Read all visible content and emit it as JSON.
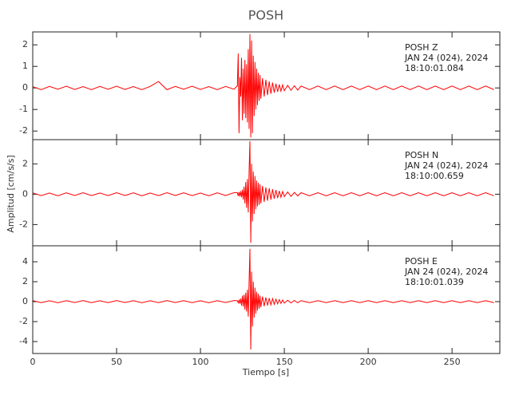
{
  "chart_data": [
    {
      "type": "line",
      "title": "POSH",
      "color": "#ff0000",
      "annotations": [
        "POSH   Z",
        "JAN 24 (024), 2024",
        "18:10:01.084"
      ],
      "xlim": [
        0,
        278.5
      ],
      "xticks": [
        0,
        50,
        100,
        150,
        200,
        250
      ],
      "ylim": [
        -2.4,
        2.6
      ],
      "yticks": [
        -2,
        -1,
        0,
        1,
        2
      ],
      "x": [
        0,
        5,
        10,
        15,
        20,
        25,
        30,
        35,
        40,
        45,
        50,
        55,
        60,
        65,
        70,
        75,
        80,
        85,
        90,
        95,
        100,
        105,
        110,
        115,
        120,
        122,
        122.5,
        123,
        123.5,
        124,
        124.5,
        125,
        125.5,
        126,
        126.5,
        127,
        127.5,
        128,
        128.5,
        129,
        129.5,
        130,
        130.5,
        131,
        131.5,
        132,
        132.5,
        133,
        133.5,
        134,
        134.5,
        135,
        135.5,
        136,
        137,
        138,
        139,
        140,
        141,
        142,
        143,
        144,
        145,
        146,
        147,
        148,
        149,
        150,
        152,
        154,
        156,
        158,
        160,
        165,
        170,
        175,
        180,
        185,
        190,
        195,
        200,
        205,
        210,
        215,
        220,
        225,
        230,
        235,
        240,
        245,
        250,
        255,
        260,
        265,
        270,
        275
      ],
      "values": [
        0.06,
        -0.08,
        0.07,
        -0.06,
        0.08,
        -0.07,
        0.06,
        -0.08,
        0.07,
        -0.06,
        0.08,
        -0.07,
        0.06,
        -0.08,
        0.07,
        0.3,
        -0.08,
        0.07,
        -0.06,
        0.08,
        -0.07,
        0.06,
        -0.08,
        0.07,
        -0.06,
        0.1,
        1.6,
        -2.1,
        0.5,
        -0.4,
        1.4,
        -1.5,
        0.9,
        -1.2,
        1.3,
        -1.4,
        1.1,
        -1.6,
        1.8,
        -1.9,
        2.5,
        -2.3,
        2.2,
        -2.1,
        1.5,
        -1.3,
        1.2,
        -1.0,
        0.9,
        -0.8,
        0.7,
        -0.6,
        0.6,
        -0.5,
        0.45,
        -0.4,
        0.38,
        -0.33,
        0.3,
        -0.27,
        0.25,
        -0.22,
        0.2,
        -0.18,
        0.16,
        -0.15,
        0.14,
        -0.13,
        0.12,
        -0.11,
        0.1,
        -0.1,
        0.09,
        -0.08,
        0.09,
        -0.08,
        0.09,
        -0.08,
        0.09,
        -0.08,
        0.09,
        -0.08,
        0.09,
        -0.08,
        0.09,
        -0.08,
        0.09,
        -0.08,
        0.09,
        -0.08,
        0.09,
        -0.08,
        0.09,
        -0.08,
        0.09,
        -0.08
      ]
    },
    {
      "type": "line",
      "ylabel": "Amplitud [cm/s/s]",
      "color": "#ff0000",
      "annotations": [
        "POSH   N",
        "JAN 24 (024), 2024",
        "18:10:00.659"
      ],
      "xlim": [
        0,
        278.5
      ],
      "xticks": [
        0,
        50,
        100,
        150,
        200,
        250
      ],
      "ylim": [
        -3.4,
        3.6
      ],
      "yticks": [
        -2,
        0,
        2
      ],
      "x": [
        0,
        5,
        10,
        15,
        20,
        25,
        30,
        35,
        40,
        45,
        50,
        55,
        60,
        65,
        70,
        75,
        80,
        85,
        90,
        95,
        100,
        105,
        110,
        115,
        120,
        122,
        122.5,
        123,
        123.5,
        124,
        124.5,
        125,
        125.5,
        126,
        126.5,
        127,
        127.5,
        128,
        128.5,
        129,
        129.5,
        130,
        130.5,
        131,
        131.5,
        132,
        132.5,
        133,
        133.5,
        134,
        134.5,
        135,
        135.5,
        136,
        137,
        138,
        139,
        140,
        141,
        142,
        143,
        144,
        145,
        146,
        147,
        148,
        149,
        150,
        152,
        154,
        156,
        158,
        160,
        165,
        170,
        175,
        180,
        185,
        190,
        195,
        200,
        205,
        210,
        215,
        220,
        225,
        230,
        235,
        240,
        245,
        250,
        255,
        260,
        265,
        270,
        275
      ],
      "values": [
        0.09,
        -0.09,
        0.08,
        -0.1,
        0.09,
        -0.08,
        0.1,
        -0.09,
        0.08,
        -0.09,
        0.1,
        -0.08,
        0.09,
        -0.1,
        0.08,
        -0.09,
        0.1,
        -0.08,
        0.09,
        -0.09,
        0.08,
        -0.1,
        0.09,
        -0.08,
        0.1,
        0.1,
        -0.12,
        0.15,
        -0.15,
        0.2,
        -0.2,
        0.3,
        -0.35,
        0.5,
        -0.6,
        0.8,
        -0.9,
        1.0,
        -1.2,
        1.5,
        3.5,
        -3.2,
        2.0,
        -1.8,
        1.5,
        -1.3,
        1.2,
        -1.0,
        0.9,
        -0.8,
        0.75,
        -0.7,
        0.65,
        -0.6,
        0.55,
        -0.5,
        0.45,
        -0.42,
        0.4,
        -0.36,
        0.33,
        -0.3,
        0.28,
        -0.25,
        0.22,
        -0.2,
        0.18,
        -0.16,
        0.15,
        -0.14,
        0.12,
        -0.11,
        0.1,
        -0.1,
        0.1,
        -0.1,
        0.1,
        -0.1,
        0.1,
        -0.1,
        0.1,
        -0.1,
        0.1,
        -0.1,
        0.1,
        -0.1,
        0.1,
        -0.1,
        0.1,
        -0.1,
        0.1,
        -0.1,
        0.1,
        -0.1,
        0.1,
        -0.1
      ]
    },
    {
      "type": "line",
      "xlabel": "Tiempo [s]",
      "color": "#ff0000",
      "annotations": [
        "POSH   E",
        "JAN 24 (024), 2024",
        "18:10:01.039"
      ],
      "xlim": [
        0,
        278.5
      ],
      "xticks": [
        0,
        50,
        100,
        150,
        200,
        250
      ],
      "ylim": [
        -5.2,
        5.6
      ],
      "yticks": [
        -4,
        -2,
        0,
        2,
        4
      ],
      "x": [
        0,
        5,
        10,
        15,
        20,
        25,
        30,
        35,
        40,
        45,
        50,
        55,
        60,
        65,
        70,
        75,
        80,
        85,
        90,
        95,
        100,
        105,
        110,
        115,
        120,
        122,
        122.5,
        123,
        123.5,
        124,
        124.5,
        125,
        125.5,
        126,
        126.5,
        127,
        127.5,
        128,
        128.5,
        129,
        129.5,
        130,
        130.5,
        131,
        131.5,
        132,
        132.5,
        133,
        133.5,
        134,
        134.5,
        135,
        135.5,
        136,
        137,
        138,
        139,
        140,
        141,
        142,
        143,
        144,
        145,
        146,
        147,
        148,
        149,
        150,
        152,
        154,
        156,
        158,
        160,
        165,
        170,
        175,
        180,
        185,
        190,
        195,
        200,
        205,
        210,
        215,
        220,
        225,
        230,
        235,
        240,
        245,
        250,
        255,
        260,
        265,
        270,
        275
      ],
      "values": [
        0.1,
        -0.1,
        0.09,
        -0.11,
        0.1,
        -0.09,
        0.11,
        -0.1,
        0.09,
        -0.1,
        0.11,
        -0.09,
        0.1,
        -0.11,
        0.09,
        -0.1,
        0.11,
        -0.09,
        0.1,
        -0.1,
        0.09,
        -0.11,
        0.1,
        -0.09,
        0.11,
        0.1,
        -0.12,
        0.15,
        -0.2,
        0.3,
        -0.4,
        0.6,
        -0.5,
        0.7,
        -0.8,
        0.9,
        -1.0,
        1.2,
        -1.5,
        2.0,
        5.3,
        -4.8,
        3.0,
        -2.5,
        2.0,
        -1.6,
        1.4,
        -1.2,
        1.0,
        -0.9,
        0.8,
        -0.7,
        0.6,
        -0.55,
        0.5,
        -0.45,
        0.42,
        -0.38,
        0.35,
        -0.32,
        0.3,
        -0.27,
        0.25,
        -0.22,
        0.2,
        -0.18,
        0.16,
        -0.15,
        0.14,
        -0.13,
        0.12,
        -0.11,
        0.1,
        -0.1,
        0.1,
        -0.1,
        0.1,
        -0.1,
        0.1,
        -0.1,
        0.1,
        -0.1,
        0.1,
        -0.1,
        0.1,
        -0.1,
        0.1,
        -0.1,
        0.1,
        -0.1,
        0.1,
        -0.1,
        0.1,
        -0.1,
        0.1,
        -0.1
      ]
    }
  ]
}
